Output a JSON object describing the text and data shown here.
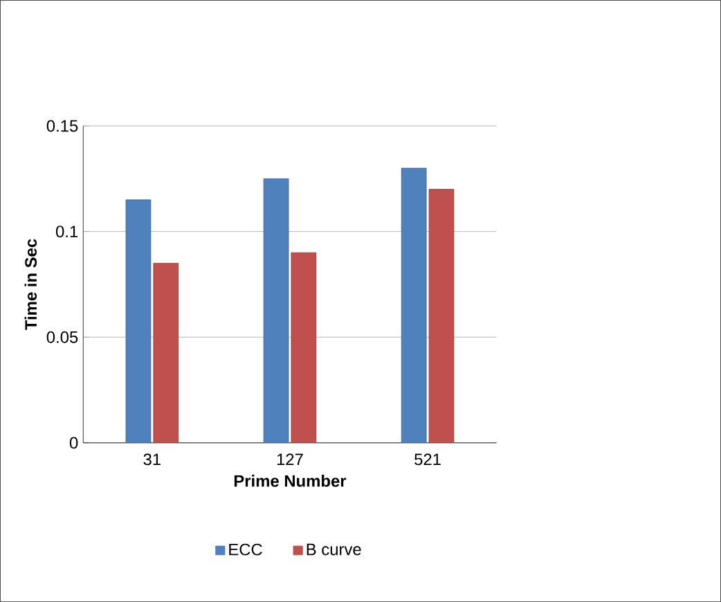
{
  "chart_data": {
    "type": "bar",
    "xlabel": "Prime Number",
    "ylabel": "Time in Sec",
    "categories": [
      "31",
      "127",
      "521"
    ],
    "series": [
      {
        "name": "ECC",
        "color": "#4f81bd",
        "values": [
          0.115,
          0.125,
          0.13
        ]
      },
      {
        "name": "B curve",
        "color": "#c0504d",
        "values": [
          0.085,
          0.09,
          0.12
        ]
      }
    ],
    "ylim": [
      0,
      0.15
    ],
    "yticks": [
      0,
      0.05,
      0.1,
      0.15
    ],
    "grid": "y",
    "legend": "bottom"
  }
}
